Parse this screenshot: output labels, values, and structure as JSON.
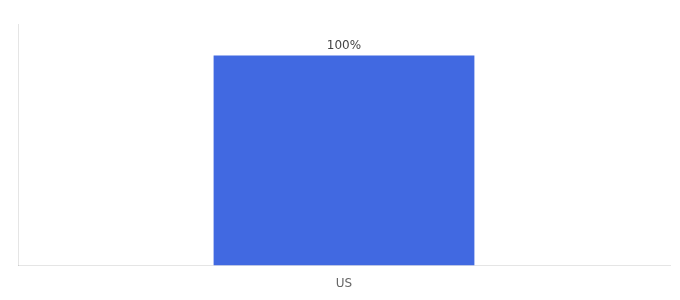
{
  "chart_data": {
    "type": "bar",
    "categories": [
      "US"
    ],
    "values": [
      100
    ],
    "value_labels": [
      "100%"
    ],
    "color": "#4169e1",
    "ylim": [
      0,
      115
    ],
    "grid": false,
    "tick_labels": "x",
    "data_labels": true
  }
}
